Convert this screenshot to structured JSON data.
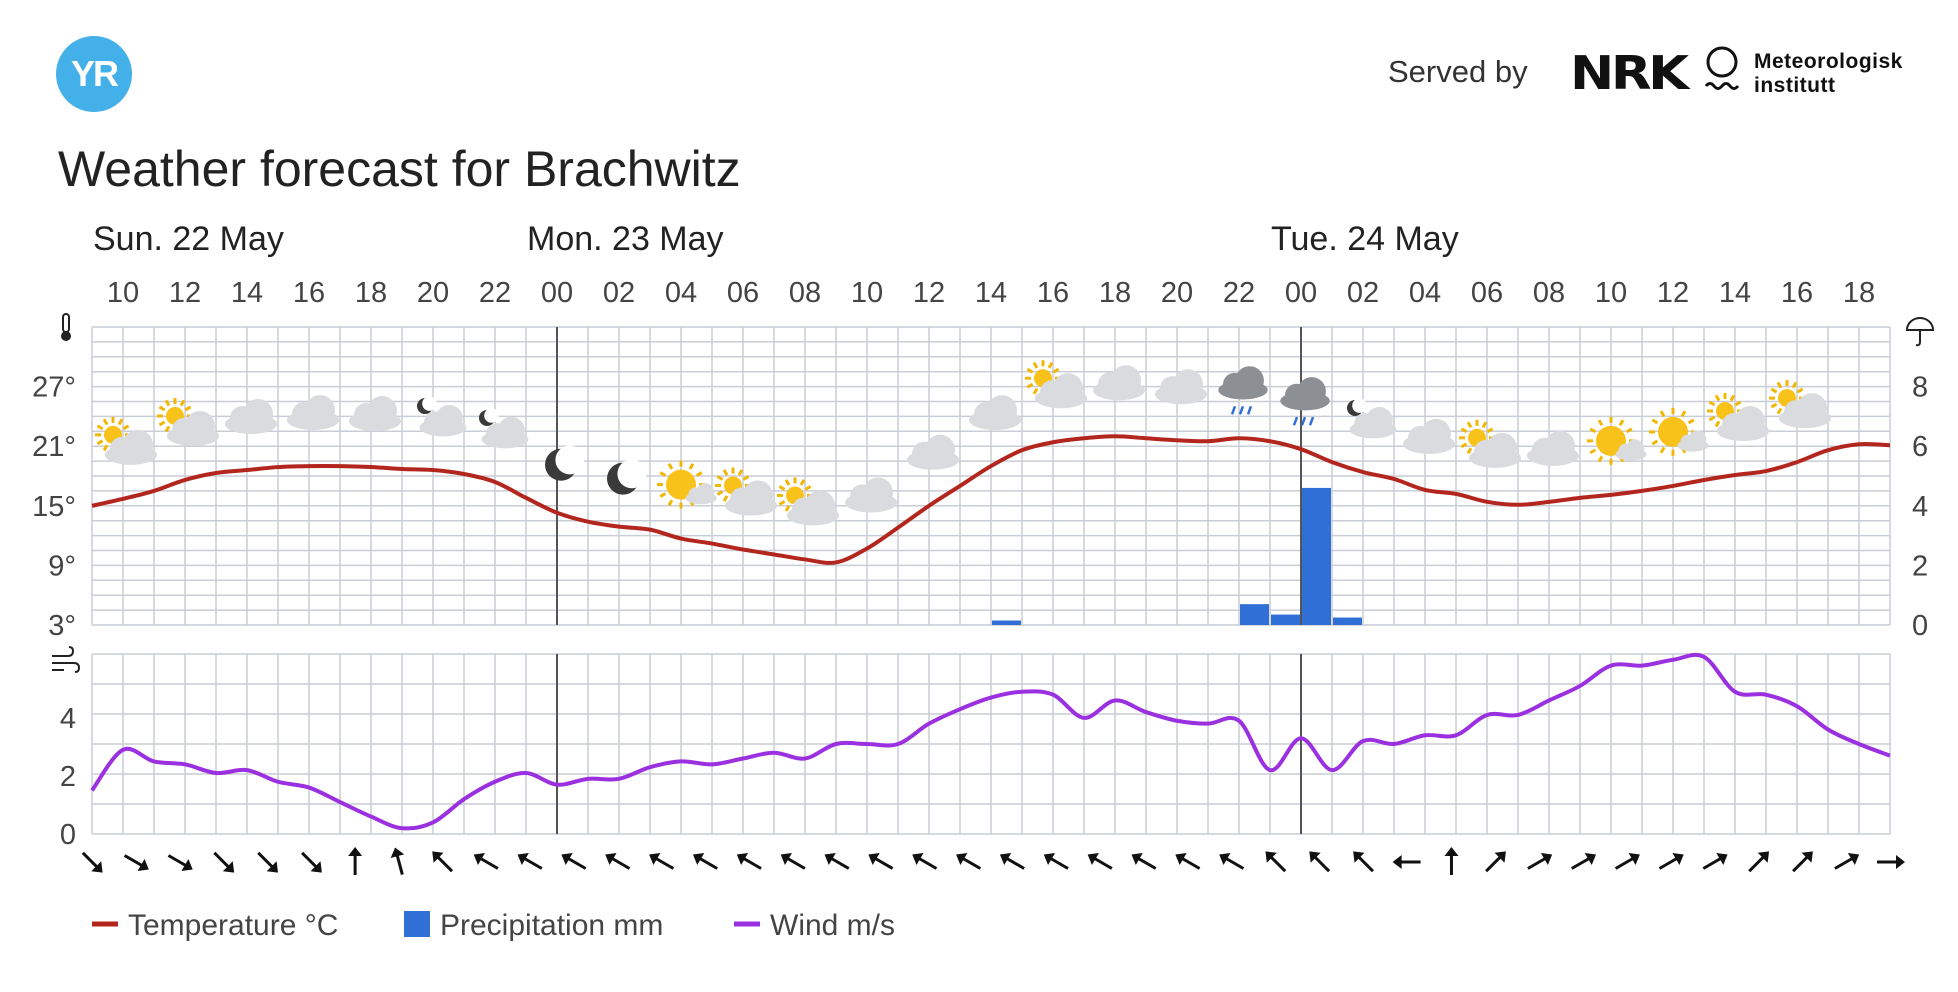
{
  "header": {
    "logo_text": "YR",
    "served_by": "Served by",
    "nrk": "NRK",
    "met_line1": "Meteorologisk",
    "met_line2": "institutt"
  },
  "title": "Weather forecast for Brachwitz",
  "colors": {
    "temperature": "#b3261e",
    "precipitation": "#2f6fd6",
    "wind": "#9b30e0",
    "grid": "#c9cdd6",
    "day_divider": "#555555"
  },
  "chart_data": {
    "type": "line",
    "days": [
      {
        "label": "Sun. 22 May",
        "start_hour_index": 0
      },
      {
        "label": "Mon. 23 May",
        "start_hour_index": 7
      },
      {
        "label": "Tue. 24 May",
        "start_hour_index": 19
      }
    ],
    "hour_ticks": [
      "10",
      "12",
      "14",
      "16",
      "18",
      "20",
      "22",
      "00",
      "02",
      "04",
      "06",
      "08",
      "10",
      "12",
      "14",
      "16",
      "18",
      "20",
      "22",
      "00",
      "02",
      "04",
      "06",
      "08",
      "10",
      "12",
      "14",
      "16",
      "18"
    ],
    "hours_since_start_range": [
      -1,
      57
    ],
    "day_boundaries": [
      14,
      38
    ],
    "temperature": {
      "name": "Temperature °C",
      "unit": "°C",
      "y_ticks": [
        "3°",
        "9°",
        "15°",
        "21°",
        "27°"
      ],
      "ylim": [
        3,
        33
      ],
      "x": [
        -1,
        0,
        1,
        2,
        3,
        4,
        5,
        6,
        7,
        8,
        9,
        10,
        11,
        12,
        13,
        14,
        15,
        16,
        17,
        18,
        19,
        20,
        21,
        22,
        23,
        24,
        25,
        26,
        27,
        28,
        29,
        30,
        31,
        32,
        33,
        34,
        35,
        36,
        37,
        38,
        39,
        40,
        41,
        42,
        43,
        44,
        45,
        46,
        47,
        48,
        49,
        50,
        51,
        52,
        53,
        54,
        55,
        56,
        57
      ],
      "values": [
        15,
        15.7,
        16.5,
        17.6,
        18.3,
        18.6,
        18.9,
        19,
        19,
        18.9,
        18.7,
        18.6,
        18.2,
        17.4,
        15.8,
        14.3,
        13.4,
        12.9,
        12.6,
        11.7,
        11.2,
        10.6,
        10.1,
        9.6,
        9.3,
        10.7,
        12.8,
        15,
        17,
        19,
        20.6,
        21.4,
        21.8,
        22,
        21.8,
        21.6,
        21.5,
        21.8,
        21.5,
        20.7,
        19.4,
        18.4,
        17.7,
        16.6,
        16.2,
        15.4,
        15.1,
        15.4,
        15.8,
        16.1,
        16.5,
        17,
        17.6,
        18.1,
        18.5,
        19.4,
        20.6,
        21.2,
        21.1
      ]
    },
    "precipitation": {
      "name": "Precipitation mm",
      "unit": "mm",
      "y_ticks": [
        "0",
        "2",
        "4",
        "6",
        "8"
      ],
      "ylim": [
        0,
        10
      ],
      "bars": [
        {
          "hour": 29,
          "value": 0.15
        },
        {
          "hour": 37,
          "value": 0.7
        },
        {
          "hour": 38,
          "value": 0.35
        },
        {
          "hour": 39,
          "value": 4.6
        },
        {
          "hour": 40,
          "value": 0.25
        }
      ]
    },
    "wind": {
      "name": "Wind m/s",
      "unit": "m/s",
      "y_ticks": [
        "0",
        "2",
        "4"
      ],
      "ylim": [
        0,
        6.2
      ],
      "x": [
        -1,
        0,
        1,
        2,
        3,
        4,
        5,
        6,
        7,
        8,
        9,
        10,
        11,
        12,
        13,
        14,
        15,
        16,
        17,
        18,
        19,
        20,
        21,
        22,
        23,
        24,
        25,
        26,
        27,
        28,
        29,
        30,
        31,
        32,
        33,
        34,
        35,
        36,
        37,
        38,
        39,
        40,
        41,
        42,
        43,
        44,
        45,
        46,
        47,
        48,
        49,
        50,
        51,
        52,
        53,
        54,
        55,
        56,
        57
      ],
      "values": [
        1.5,
        2.9,
        2.5,
        2.4,
        2.1,
        2.2,
        1.8,
        1.6,
        1.1,
        0.6,
        0.2,
        0.4,
        1.2,
        1.8,
        2.1,
        1.7,
        1.9,
        1.9,
        2.3,
        2.5,
        2.4,
        2.6,
        2.8,
        2.6,
        3.1,
        3.1,
        3.1,
        3.8,
        4.3,
        4.7,
        4.9,
        4.8,
        4.0,
        4.6,
        4.2,
        3.9,
        3.8,
        3.9,
        2.2,
        3.3,
        2.2,
        3.2,
        3.1,
        3.4,
        3.4,
        4.1,
        4.1,
        4.6,
        5.1,
        5.8,
        5.8,
        6.0,
        6.1,
        4.9,
        4.8,
        4.4,
        3.6,
        3.1,
        2.7
      ]
    },
    "wind_direction_arrows_deg": [
      135,
      120,
      120,
      135,
      135,
      135,
      0,
      345,
      315,
      300,
      300,
      300,
      300,
      300,
      300,
      300,
      300,
      300,
      300,
      300,
      300,
      300,
      300,
      300,
      300,
      300,
      300,
      315,
      315,
      315,
      270,
      0,
      45,
      60,
      60,
      60,
      60,
      60,
      45,
      45,
      60,
      90
    ],
    "weather_symbols": [
      "partly-cloudy-day",
      "partly-cloudy-day",
      "cloudy",
      "cloudy",
      "cloudy",
      "partly-cloudy-night",
      "partly-cloudy-night",
      "clear-night",
      "clear-night",
      "fair-day",
      "partly-cloudy-day",
      "partly-cloudy-day",
      "cloudy",
      "cloudy",
      "cloudy",
      "partly-cloudy-day",
      "cloudy",
      "cloudy",
      "rain-showers",
      "rain-showers",
      "partly-cloudy-night",
      "cloudy",
      "partly-cloudy-day",
      "cloudy",
      "fair-day",
      "fair-day",
      "partly-cloudy-day",
      "partly-cloudy-day"
    ],
    "legend": [
      {
        "label": "Temperature °C",
        "series": "temperature"
      },
      {
        "label": "Precipitation mm",
        "series": "precipitation"
      },
      {
        "label": "Wind m/s",
        "series": "wind"
      }
    ],
    "legend_placement": "bottom-left",
    "grid": true
  }
}
